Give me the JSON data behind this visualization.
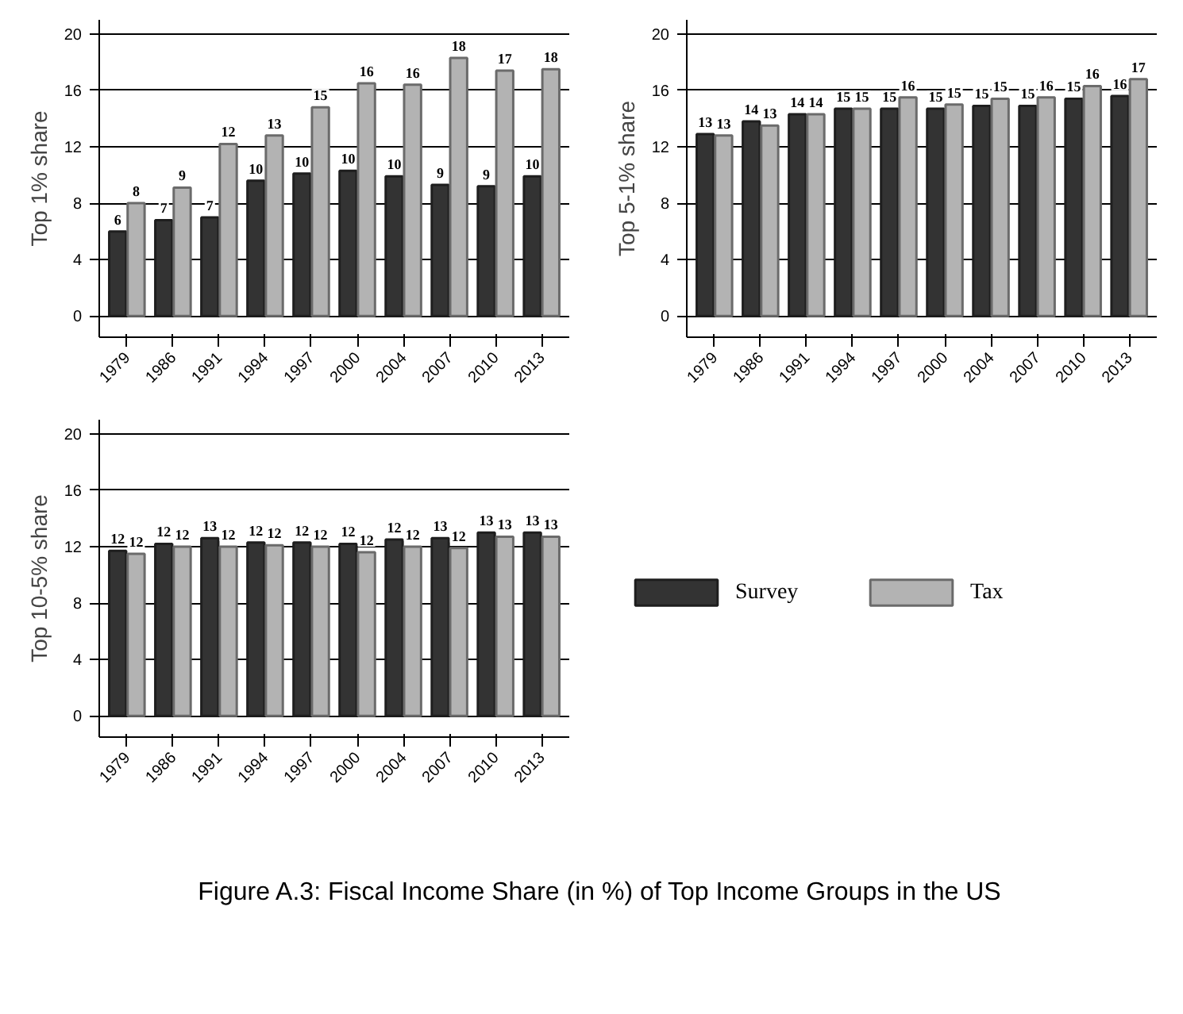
{
  "chart_data": [
    {
      "type": "bar",
      "ylabel": "Top 1% share",
      "categories": [
        "1979",
        "1986",
        "1991",
        "1994",
        "1997",
        "2000",
        "2004",
        "2007",
        "2010",
        "2013"
      ],
      "ylim": [
        -1.5,
        21
      ],
      "yticks": [
        0,
        4,
        8,
        12,
        16,
        20
      ],
      "grid": "y",
      "legend": "right",
      "series": [
        {
          "name": "Survey",
          "color": "#333333",
          "values": [
            6.0,
            6.8,
            7.0,
            9.6,
            10.1,
            10.3,
            9.9,
            9.3,
            9.2,
            9.9
          ],
          "value_labels": [
            "6",
            "7",
            "7",
            "10",
            "10",
            "10",
            "10",
            "9",
            "9",
            "10"
          ]
        },
        {
          "name": "Tax",
          "color": "#b3b3b3",
          "values": [
            8.0,
            9.1,
            12.2,
            12.8,
            14.8,
            16.5,
            16.4,
            18.3,
            17.4,
            17.5
          ],
          "value_labels": [
            "8",
            "9",
            "12",
            "13",
            "15",
            "16",
            "16",
            "18",
            "17",
            "18"
          ]
        }
      ]
    },
    {
      "type": "bar",
      "ylabel": "Top 5-1% share",
      "categories": [
        "1979",
        "1986",
        "1991",
        "1994",
        "1997",
        "2000",
        "2004",
        "2007",
        "2010",
        "2013"
      ],
      "ylim": [
        -1.5,
        21
      ],
      "yticks": [
        0,
        4,
        8,
        12,
        16,
        20
      ],
      "grid": "y",
      "series": [
        {
          "color": "#333333",
          "values": [
            12.9,
            13.8,
            14.3,
            14.7,
            14.7,
            14.7,
            14.9,
            14.9,
            15.4,
            15.6
          ],
          "value_labels": [
            "13",
            "14",
            "14",
            "15",
            "15",
            "15",
            "15",
            "15",
            "15",
            "16"
          ]
        },
        {
          "color": "#b3b3b3",
          "values": [
            12.8,
            13.5,
            14.3,
            14.7,
            15.5,
            15.0,
            15.4,
            15.5,
            16.3,
            16.8
          ],
          "value_labels": [
            "13",
            "13",
            "14",
            "15",
            "16",
            "15",
            "15",
            "16",
            "16",
            "17"
          ]
        }
      ]
    },
    {
      "type": "bar",
      "ylabel": "Top 10-5% share",
      "categories": [
        "1979",
        "1986",
        "1991",
        "1994",
        "1997",
        "2000",
        "2004",
        "2007",
        "2010",
        "2013"
      ],
      "ylim": [
        -1.5,
        21
      ],
      "yticks": [
        0,
        4,
        8,
        12,
        16,
        20
      ],
      "grid": "y",
      "annotations": [
        "Figure A.3: Fiscal Income Share (in %) of Top Income Groups in the US"
      ],
      "series": [
        {
          "color": "#333333",
          "values": [
            11.7,
            12.2,
            12.6,
            12.3,
            12.3,
            12.2,
            12.5,
            12.6,
            13.0,
            13.0
          ],
          "value_labels": [
            "12",
            "12",
            "13",
            "12",
            "12",
            "12",
            "12",
            "13",
            "13",
            "13"
          ]
        },
        {
          "color": "#b3b3b3",
          "values": [
            11.5,
            12.0,
            12.0,
            12.1,
            12.0,
            11.6,
            12.0,
            11.9,
            12.7,
            12.7
          ],
          "value_labels": [
            "12",
            "12",
            "12",
            "12",
            "12",
            "12",
            "12",
            "12",
            "13",
            "13"
          ]
        }
      ]
    }
  ]
}
